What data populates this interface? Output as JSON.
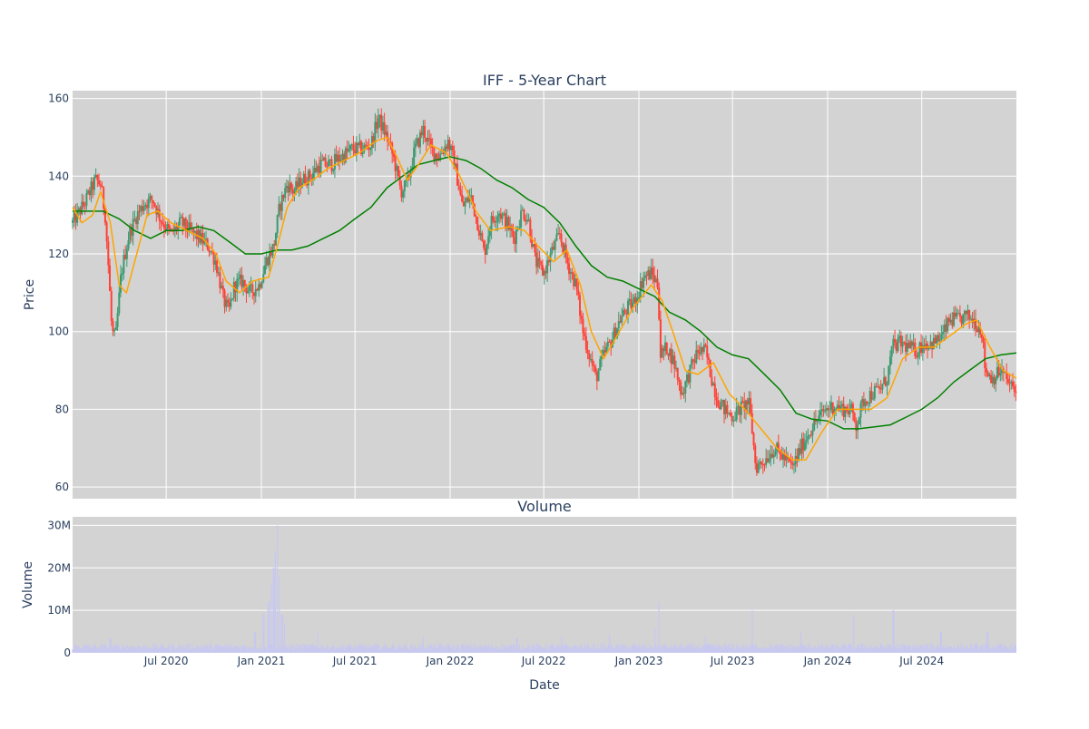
{
  "chart_data": [
    {
      "type": "candlestick",
      "title": "IFF - 5-Year Chart",
      "ylabel": "Price",
      "ylim": [
        57,
        162
      ],
      "yticks": [
        60,
        80,
        100,
        120,
        140,
        160
      ],
      "x_range": [
        "2020-01-02",
        "2024-12-31"
      ],
      "grid": true,
      "colors": {
        "up": "#3d9970",
        "down": "#ff4136",
        "ma_short": "#ffa500",
        "ma_long": "#008000",
        "plot_bg": "#d3d3d3"
      },
      "price_path": [
        [
          "2020-01-02",
          128
        ],
        [
          "2020-01-25",
          133
        ],
        [
          "2020-02-15",
          139
        ],
        [
          "2020-02-25",
          138
        ],
        [
          "2020-03-05",
          130
        ],
        [
          "2020-03-12",
          115
        ],
        [
          "2020-03-18",
          100
        ],
        [
          "2020-03-25",
          98
        ],
        [
          "2020-04-05",
          115
        ],
        [
          "2020-04-20",
          125
        ],
        [
          "2020-05-05",
          130
        ],
        [
          "2020-05-20",
          133
        ],
        [
          "2020-06-05",
          134
        ],
        [
          "2020-06-20",
          129
        ],
        [
          "2020-07-10",
          125
        ],
        [
          "2020-07-30",
          128
        ],
        [
          "2020-08-15",
          126
        ],
        [
          "2020-09-05",
          124
        ],
        [
          "2020-09-20",
          122
        ],
        [
          "2020-10-05",
          118
        ],
        [
          "2020-10-20",
          108
        ],
        [
          "2020-10-30",
          105
        ],
        [
          "2020-11-10",
          112
        ],
        [
          "2020-11-25",
          113
        ],
        [
          "2020-12-10",
          110
        ],
        [
          "2020-12-28",
          112
        ],
        [
          "2021-01-10",
          118
        ],
        [
          "2021-01-25",
          122
        ],
        [
          "2021-02-05",
          132
        ],
        [
          "2021-02-20",
          138
        ],
        [
          "2021-03-05",
          136
        ],
        [
          "2021-03-20",
          139
        ],
        [
          "2021-04-05",
          140
        ],
        [
          "2021-04-25",
          143
        ],
        [
          "2021-05-15",
          143
        ],
        [
          "2021-06-05",
          145
        ],
        [
          "2021-06-25",
          147
        ],
        [
          "2021-07-15",
          147
        ],
        [
          "2021-08-01",
          148
        ],
        [
          "2021-08-15",
          155
        ],
        [
          "2021-09-01",
          150
        ],
        [
          "2021-09-15",
          144
        ],
        [
          "2021-09-28",
          136
        ],
        [
          "2021-10-10",
          138
        ],
        [
          "2021-10-25",
          147
        ],
        [
          "2021-11-10",
          152
        ],
        [
          "2021-11-25",
          147
        ],
        [
          "2021-12-10",
          145
        ],
        [
          "2021-12-28",
          149
        ],
        [
          "2022-01-10",
          143
        ],
        [
          "2022-01-25",
          132
        ],
        [
          "2022-02-10",
          135
        ],
        [
          "2022-02-25",
          127
        ],
        [
          "2022-03-08",
          120
        ],
        [
          "2022-03-20",
          128
        ],
        [
          "2022-04-05",
          131
        ],
        [
          "2022-04-20",
          128
        ],
        [
          "2022-05-05",
          124
        ],
        [
          "2022-05-20",
          131
        ],
        [
          "2022-06-01",
          129
        ],
        [
          "2022-06-15",
          118
        ],
        [
          "2022-07-01",
          115
        ],
        [
          "2022-07-15",
          120
        ],
        [
          "2022-08-01",
          125
        ],
        [
          "2022-08-15",
          118
        ],
        [
          "2022-09-01",
          112
        ],
        [
          "2022-09-15",
          100
        ],
        [
          "2022-09-25",
          95
        ],
        [
          "2022-10-10",
          88
        ],
        [
          "2022-10-25",
          94
        ],
        [
          "2022-11-10",
          98
        ],
        [
          "2022-11-25",
          103
        ],
        [
          "2022-12-10",
          106
        ],
        [
          "2022-12-25",
          108
        ],
        [
          "2023-01-10",
          114
        ],
        [
          "2023-01-25",
          115
        ],
        [
          "2023-02-07",
          112
        ],
        [
          "2023-02-12",
          94
        ],
        [
          "2023-02-25",
          96
        ],
        [
          "2023-03-10",
          92
        ],
        [
          "2023-03-25",
          84
        ],
        [
          "2023-04-10",
          90
        ],
        [
          "2023-04-25",
          95
        ],
        [
          "2023-05-10",
          95
        ],
        [
          "2023-05-20",
          89
        ],
        [
          "2023-06-01",
          83
        ],
        [
          "2023-06-15",
          80
        ],
        [
          "2023-07-01",
          78
        ],
        [
          "2023-07-15",
          80
        ],
        [
          "2023-08-01",
          82
        ],
        [
          "2023-08-07",
          76
        ],
        [
          "2023-08-15",
          65
        ],
        [
          "2023-09-01",
          67
        ],
        [
          "2023-09-20",
          70
        ],
        [
          "2023-10-05",
          68
        ],
        [
          "2023-10-25",
          65
        ],
        [
          "2023-11-10",
          70
        ],
        [
          "2023-11-25",
          74
        ],
        [
          "2023-12-10",
          77
        ],
        [
          "2023-12-28",
          80
        ],
        [
          "2024-01-15",
          81
        ],
        [
          "2024-02-01",
          80
        ],
        [
          "2024-02-15",
          80
        ],
        [
          "2024-02-25",
          76
        ],
        [
          "2024-03-10",
          82
        ],
        [
          "2024-03-25",
          84
        ],
        [
          "2024-04-10",
          85
        ],
        [
          "2024-04-25",
          88
        ],
        [
          "2024-05-05",
          96
        ],
        [
          "2024-05-20",
          97
        ],
        [
          "2024-06-05",
          96
        ],
        [
          "2024-06-20",
          95
        ],
        [
          "2024-07-05",
          97
        ],
        [
          "2024-07-25",
          97
        ],
        [
          "2024-08-10",
          99
        ],
        [
          "2024-08-25",
          103
        ],
        [
          "2024-09-10",
          103
        ],
        [
          "2024-09-25",
          104
        ],
        [
          "2024-10-10",
          103
        ],
        [
          "2024-10-25",
          100
        ],
        [
          "2024-11-01",
          90
        ],
        [
          "2024-11-15",
          88
        ],
        [
          "2024-12-01",
          90
        ],
        [
          "2024-12-15",
          87
        ],
        [
          "2024-12-31",
          84
        ]
      ],
      "ma_short_path": [
        [
          "2020-01-02",
          132
        ],
        [
          "2020-01-20",
          128
        ],
        [
          "2020-02-10",
          130
        ],
        [
          "2020-02-25",
          136
        ],
        [
          "2020-03-15",
          128
        ],
        [
          "2020-04-01",
          112
        ],
        [
          "2020-04-15",
          110
        ],
        [
          "2020-05-05",
          120
        ],
        [
          "2020-05-25",
          130
        ],
        [
          "2020-06-15",
          131
        ],
        [
          "2020-07-10",
          128
        ],
        [
          "2020-08-10",
          126
        ],
        [
          "2020-09-10",
          124
        ],
        [
          "2020-10-05",
          120
        ],
        [
          "2020-10-25",
          113
        ],
        [
          "2020-11-20",
          110
        ],
        [
          "2020-12-15",
          113
        ],
        [
          "2021-01-15",
          114
        ],
        [
          "2021-02-01",
          122
        ],
        [
          "2021-02-20",
          132
        ],
        [
          "2021-03-15",
          137
        ],
        [
          "2021-04-10",
          139
        ],
        [
          "2021-05-10",
          142
        ],
        [
          "2021-06-10",
          144
        ],
        [
          "2021-07-10",
          146
        ],
        [
          "2021-08-10",
          149
        ],
        [
          "2021-09-01",
          150
        ],
        [
          "2021-09-20",
          145
        ],
        [
          "2021-10-10",
          139
        ],
        [
          "2021-11-01",
          143
        ],
        [
          "2021-11-25",
          148
        ],
        [
          "2021-12-25",
          146
        ],
        [
          "2022-01-20",
          140
        ],
        [
          "2022-02-20",
          131
        ],
        [
          "2022-03-20",
          126
        ],
        [
          "2022-04-25",
          127
        ],
        [
          "2022-05-25",
          126
        ],
        [
          "2022-06-20",
          122
        ],
        [
          "2022-07-20",
          118
        ],
        [
          "2022-08-15",
          121
        ],
        [
          "2022-09-10",
          112
        ],
        [
          "2022-10-01",
          100
        ],
        [
          "2022-10-25",
          93
        ],
        [
          "2022-11-20",
          99
        ],
        [
          "2022-12-20",
          106
        ],
        [
          "2023-01-25",
          112
        ],
        [
          "2023-02-15",
          108
        ],
        [
          "2023-03-10",
          99
        ],
        [
          "2023-04-01",
          90
        ],
        [
          "2023-04-25",
          89
        ],
        [
          "2023-05-25",
          92
        ],
        [
          "2023-06-25",
          84
        ],
        [
          "2023-07-25",
          80
        ],
        [
          "2023-08-25",
          75
        ],
        [
          "2023-09-25",
          70
        ],
        [
          "2023-10-25",
          67
        ],
        [
          "2023-11-20",
          67
        ],
        [
          "2023-12-20",
          74
        ],
        [
          "2024-01-20",
          80
        ],
        [
          "2024-02-25",
          80
        ],
        [
          "2024-03-25",
          80
        ],
        [
          "2024-04-25",
          83
        ],
        [
          "2024-05-25",
          93
        ],
        [
          "2024-06-25",
          96
        ],
        [
          "2024-07-25",
          96
        ],
        [
          "2024-08-25",
          99
        ],
        [
          "2024-09-25",
          102
        ],
        [
          "2024-10-15",
          103
        ],
        [
          "2024-11-10",
          96
        ],
        [
          "2024-12-05",
          90
        ],
        [
          "2024-12-31",
          88
        ]
      ],
      "ma_long_path": [
        [
          "2020-01-02",
          131
        ],
        [
          "2020-03-01",
          131
        ],
        [
          "2020-04-01",
          129
        ],
        [
          "2020-05-01",
          126
        ],
        [
          "2020-06-01",
          124
        ],
        [
          "2020-07-01",
          126
        ],
        [
          "2020-08-01",
          126
        ],
        [
          "2020-09-01",
          127
        ],
        [
          "2020-10-01",
          126
        ],
        [
          "2020-11-01",
          123
        ],
        [
          "2020-12-01",
          120
        ],
        [
          "2021-01-01",
          120
        ],
        [
          "2021-02-01",
          121
        ],
        [
          "2021-03-01",
          121
        ],
        [
          "2021-04-01",
          122
        ],
        [
          "2021-05-01",
          124
        ],
        [
          "2021-06-01",
          126
        ],
        [
          "2021-07-01",
          129
        ],
        [
          "2021-08-01",
          132
        ],
        [
          "2021-09-01",
          137
        ],
        [
          "2021-10-01",
          140
        ],
        [
          "2021-11-01",
          143
        ],
        [
          "2021-12-01",
          144
        ],
        [
          "2022-01-01",
          145
        ],
        [
          "2022-02-01",
          144
        ],
        [
          "2022-03-01",
          142
        ],
        [
          "2022-04-01",
          139
        ],
        [
          "2022-05-01",
          137
        ],
        [
          "2022-06-01",
          134
        ],
        [
          "2022-07-01",
          132
        ],
        [
          "2022-08-01",
          128
        ],
        [
          "2022-09-01",
          122
        ],
        [
          "2022-10-01",
          117
        ],
        [
          "2022-11-01",
          114
        ],
        [
          "2022-12-01",
          113
        ],
        [
          "2023-01-01",
          111
        ],
        [
          "2023-02-01",
          109
        ],
        [
          "2023-03-01",
          105
        ],
        [
          "2023-04-01",
          103
        ],
        [
          "2023-05-01",
          100
        ],
        [
          "2023-06-01",
          96
        ],
        [
          "2023-07-01",
          94
        ],
        [
          "2023-08-01",
          93
        ],
        [
          "2023-09-01",
          89
        ],
        [
          "2023-10-01",
          85
        ],
        [
          "2023-11-01",
          79
        ],
        [
          "2023-12-01",
          77.5
        ],
        [
          "2024-01-01",
          77
        ],
        [
          "2024-02-01",
          75
        ],
        [
          "2024-03-01",
          75
        ],
        [
          "2024-04-01",
          75.5
        ],
        [
          "2024-05-01",
          76
        ],
        [
          "2024-06-01",
          78
        ],
        [
          "2024-07-01",
          80
        ],
        [
          "2024-08-01",
          83
        ],
        [
          "2024-09-01",
          87
        ],
        [
          "2024-10-01",
          90
        ],
        [
          "2024-11-01",
          93
        ],
        [
          "2024-12-01",
          94
        ],
        [
          "2024-12-31",
          94.5
        ]
      ]
    },
    {
      "type": "bar",
      "title": "Volume",
      "xlabel": "Date",
      "ylabel": "Volume",
      "ylim": [
        0,
        32000000
      ],
      "yticks": [
        0,
        10000000,
        20000000,
        30000000
      ],
      "ytick_labels": [
        "0",
        "10M",
        "20M",
        "30M"
      ],
      "xticks": [
        "2020-07-01",
        "2021-01-01",
        "2021-07-01",
        "2022-01-01",
        "2022-07-01",
        "2023-01-01",
        "2023-07-01",
        "2024-01-01",
        "2024-07-01"
      ],
      "xtick_labels": [
        "Jul 2020",
        "Jan 2021",
        "Jul 2021",
        "Jan 2022",
        "Jul 2022",
        "Jan 2023",
        "Jul 2023",
        "Jan 2024",
        "Jul 2024"
      ],
      "bar_color": "#c8c8f0",
      "baseline_volume": 1500000,
      "spikes": [
        [
          "2020-03-15",
          3500000
        ],
        [
          "2020-12-20",
          5000000
        ],
        [
          "2021-01-05",
          9000000
        ],
        [
          "2021-01-15",
          12000000
        ],
        [
          "2021-01-20",
          16000000
        ],
        [
          "2021-01-25",
          20000000
        ],
        [
          "2021-01-28",
          24000000
        ],
        [
          "2021-02-01",
          30000000
        ],
        [
          "2021-02-05",
          18000000
        ],
        [
          "2021-02-10",
          9000000
        ],
        [
          "2021-02-15",
          7000000
        ],
        [
          "2021-04-20",
          5000000
        ],
        [
          "2021-11-10",
          4000000
        ],
        [
          "2022-05-10",
          3500000
        ],
        [
          "2022-08-05",
          4000000
        ],
        [
          "2022-11-05",
          4500000
        ],
        [
          "2023-02-01",
          6000000
        ],
        [
          "2023-02-09",
          12000000
        ],
        [
          "2023-05-10",
          4000000
        ],
        [
          "2023-08-08",
          10000000
        ],
        [
          "2023-11-10",
          5000000
        ],
        [
          "2024-02-20",
          9000000
        ],
        [
          "2024-05-07",
          10000000
        ],
        [
          "2024-08-07",
          5000000
        ],
        [
          "2024-11-05",
          5000000
        ]
      ]
    }
  ]
}
